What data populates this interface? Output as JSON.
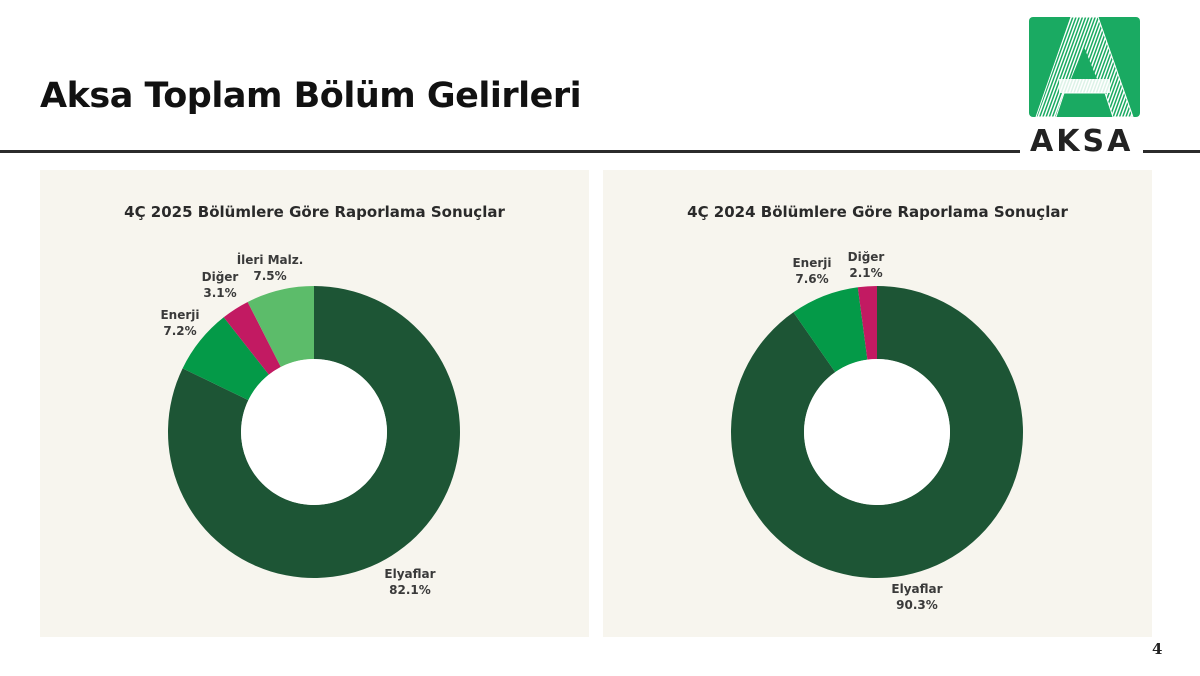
{
  "slide": {
    "title": "Aksa Toplam Bölüm Gelirleri",
    "page_number": "4",
    "logo": {
      "text": "AKSA",
      "icon": "aksa-a-logo-icon",
      "color": "#1aaa62"
    }
  },
  "colors": {
    "elyaflar": "#1d5535",
    "enerji": "#049a48",
    "diger": "#c21a62",
    "ileri_malz": "#5cbc6a",
    "panel_bg": "#f7f5ee"
  },
  "panels": [
    {
      "title": "4Ç 2025 Bölümlere Göre Raporlama Sonuçlar",
      "labels": [
        {
          "name": "Elyaflar",
          "value": "82.1%"
        },
        {
          "name": "Enerji",
          "value": "7.2%"
        },
        {
          "name": "Diğer",
          "value": "3.1%"
        },
        {
          "name": "İleri Malz.",
          "value": "7.5%"
        }
      ]
    },
    {
      "title": "4Ç 2024 Bölümlere Göre Raporlama Sonuçlar",
      "labels": [
        {
          "name": "Elyaflar",
          "value": "90.3%"
        },
        {
          "name": "Enerji",
          "value": "7.6%"
        },
        {
          "name": "Diğer",
          "value": "2.1%"
        }
      ]
    }
  ],
  "chart_data": [
    {
      "type": "pie",
      "variant": "donut",
      "title": "4Ç 2025 Bölümlere Göre Raporlama Sonuçlar",
      "categories": [
        "Elyaflar",
        "Enerji",
        "Diğer",
        "İleri Malz."
      ],
      "values": [
        82.1,
        7.2,
        3.1,
        7.5
      ],
      "unit": "%",
      "colors": [
        "#1d5535",
        "#049a48",
        "#c21a62",
        "#5cbc6a"
      ],
      "start_angle": "12 o'clock, clockwise",
      "legend": "none (direct labels)"
    },
    {
      "type": "pie",
      "variant": "donut",
      "title": "4Ç 2024 Bölümlere Göre Raporlama Sonuçlar",
      "categories": [
        "Elyaflar",
        "Enerji",
        "Diğer"
      ],
      "values": [
        90.3,
        7.6,
        2.1
      ],
      "unit": "%",
      "colors": [
        "#1d5535",
        "#049a48",
        "#c21a62"
      ],
      "start_angle": "12 o'clock, clockwise",
      "legend": "none (direct labels)"
    }
  ]
}
